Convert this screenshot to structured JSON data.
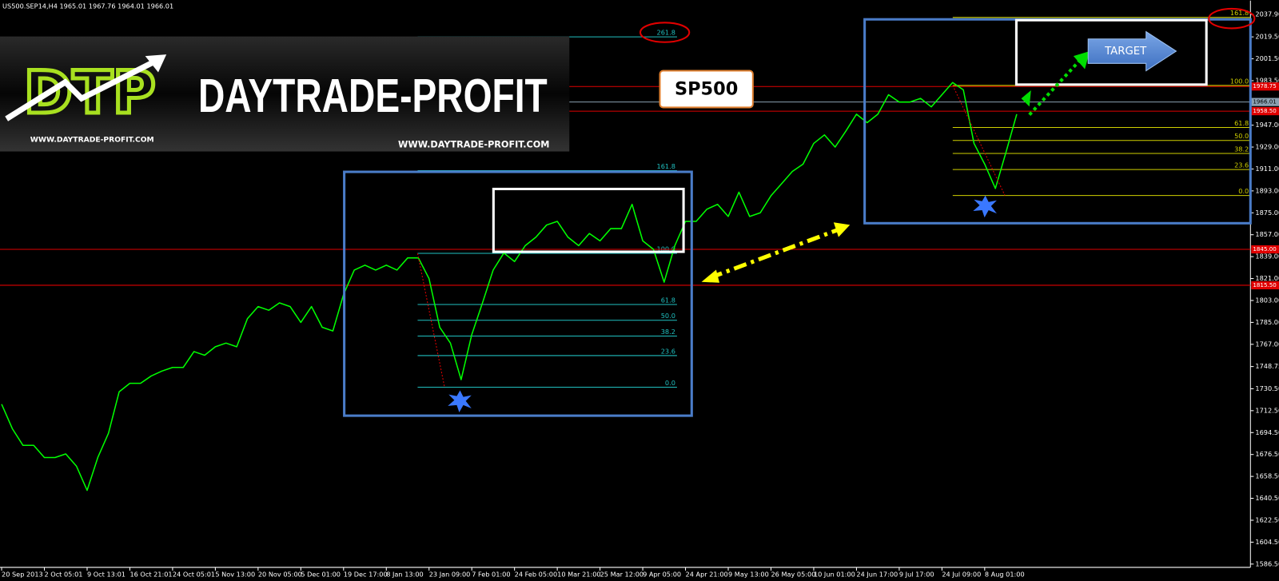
{
  "chart_data": {
    "type": "line",
    "title": "US500.SEP14,H4  1965.01 1967.76 1964.01 1966.01",
    "color": "#00ff00",
    "categories": [
      "20 Sep 2013",
      null,
      null,
      null,
      "2 Oct 05:01",
      null,
      null,
      null,
      "9 Oct 13:01",
      null,
      null,
      null,
      "16 Oct 21:01",
      null,
      null,
      null,
      "24 Oct 05:01",
      null,
      null,
      null,
      "5 Nov 13:00",
      null,
      null,
      null,
      "20 Nov 05:00",
      null,
      null,
      null,
      "5 Dec 01:00",
      null,
      null,
      null,
      "19 Dec 17:00",
      null,
      null,
      null,
      "8 Jan 13:00",
      null,
      null,
      null,
      "23 Jan 09:00",
      null,
      null,
      null,
      "7 Feb 01:00",
      null,
      null,
      null,
      "24 Feb 05:00",
      null,
      null,
      null,
      "10 Mar 21:00",
      null,
      null,
      null,
      "25 Mar 12:00",
      null,
      null,
      null,
      "9 Apr 05:00",
      null,
      null,
      null,
      "24 Apr 21:00",
      null,
      null,
      null,
      "9 May 13:00",
      null,
      null,
      null,
      "26 May 05:00",
      null,
      null,
      null,
      "10 Jun 01:00",
      null,
      null,
      null,
      "24 Jun 17:00",
      null,
      null,
      null,
      "9 Jul 17:00",
      null,
      null,
      null,
      "24 Jul 09:00",
      null,
      null,
      null,
      "8 Aug 01:00",
      null,
      null,
      null
    ],
    "values": [
      1717.8,
      1697.7,
      1684,
      1684,
      1674,
      1674,
      1677,
      1667,
      1647,
      1674,
      1694,
      1728,
      1735,
      1735,
      1741,
      1745,
      1748,
      1748,
      1761,
      1758,
      1765,
      1768,
      1765,
      1788,
      1798,
      1795,
      1801,
      1798,
      1785,
      1798,
      1781,
      1778,
      1808,
      1828,
      1832,
      1828,
      1832,
      1828,
      1838,
      1838,
      1821,
      1781,
      1768,
      1738,
      1775,
      1801,
      1828,
      1842,
      1835,
      1848,
      1855,
      1865,
      1868,
      1855,
      1848,
      1858,
      1852,
      1862,
      1862,
      1882,
      1852,
      1845,
      1818,
      1848,
      1868,
      1868,
      1878,
      1882,
      1872,
      1892,
      1872,
      1875,
      1889,
      1899,
      1909,
      1915,
      1932,
      1939,
      1929,
      1942,
      1956,
      1949,
      1956,
      1972,
      1966,
      1966,
      1969,
      1962,
      1972,
      1982,
      1976,
      1932,
      1915,
      1895,
      1925,
      1956
    ],
    "ylim": [
      1583.8,
      2049.3
    ],
    "yticks": [
      {
        "value": 2037.9,
        "label": "2037.90"
      },
      {
        "value": 2019.5,
        "label": "2019.50"
      },
      {
        "value": 2001.5,
        "label": "2001.50"
      },
      {
        "value": 1983.5,
        "label": "1983.50"
      },
      {
        "value": 1947,
        "label": "1947.00"
      },
      {
        "value": 1929,
        "label": "1929.00"
      },
      {
        "value": 1911,
        "label": "1911.00"
      },
      {
        "value": 1893,
        "label": "1893.00"
      },
      {
        "value": 1875,
        "label": "1875.00"
      },
      {
        "value": 1857,
        "label": "1857.00"
      },
      {
        "value": 1839,
        "label": "1839.00"
      },
      {
        "value": 1821,
        "label": "1821.00"
      },
      {
        "value": 1803,
        "label": "1803.00"
      },
      {
        "value": 1785,
        "label": "1785.00"
      },
      {
        "value": 1767,
        "label": "1767.00"
      },
      {
        "value": 1748.75,
        "label": "1748.75"
      },
      {
        "value": 1730.5,
        "label": "1730.50"
      },
      {
        "value": 1712.5,
        "label": "1712.50"
      },
      {
        "value": 1694.5,
        "label": "1694.50"
      },
      {
        "value": 1676.5,
        "label": "1676.50"
      },
      {
        "value": 1658.5,
        "label": "1658.50"
      },
      {
        "value": 1640.5,
        "label": "1640.50"
      },
      {
        "value": 1622.5,
        "label": "1622.50"
      },
      {
        "value": 1604.5,
        "label": "1604.50"
      },
      {
        "value": 1586.5,
        "label": "1586.50"
      }
    ],
    "price_lines": [
      {
        "value": 1978.75,
        "color": "#e00000"
      },
      {
        "value": 1966.01,
        "color": "#8aa0b0"
      },
      {
        "value": 1958.5,
        "label": "1958.50",
        "color": "#e00000"
      },
      {
        "value": 1845,
        "label": "1845.00",
        "color": "#e00000"
      },
      {
        "value": 1815.5,
        "label": "1815.50",
        "color": "#e00000"
      }
    ],
    "fib": [
      {
        "low": 1731.8,
        "high": 1841.7,
        "color": "#20c0c0",
        "levels": [
          261.8,
          161.8,
          {
            "value": 100,
            "label": "100.0"
          },
          61.8,
          {
            "value": 50,
            "label": "50.0"
          },
          38.2,
          23.6,
          {
            "value": 0,
            "label": "0.0"
          }
        ]
      },
      {
        "low": 1889.2,
        "high": 1979.6,
        "color": "#d0d000",
        "levels": [
          161.8,
          {
            "value": 100,
            "label": "100.0"
          },
          61.8,
          {
            "value": 50,
            "label": "50.0"
          },
          38.2,
          23.6,
          {
            "value": 0,
            "label": "0.0"
          }
        ]
      }
    ]
  },
  "logo": {
    "mark": "DTP",
    "name": "DAYTRADE-PROFIT",
    "url": "WWW.DAYTRADE-PROFIT.COM"
  },
  "annotations": {
    "instrument": "SP500",
    "target": "TARGET"
  }
}
